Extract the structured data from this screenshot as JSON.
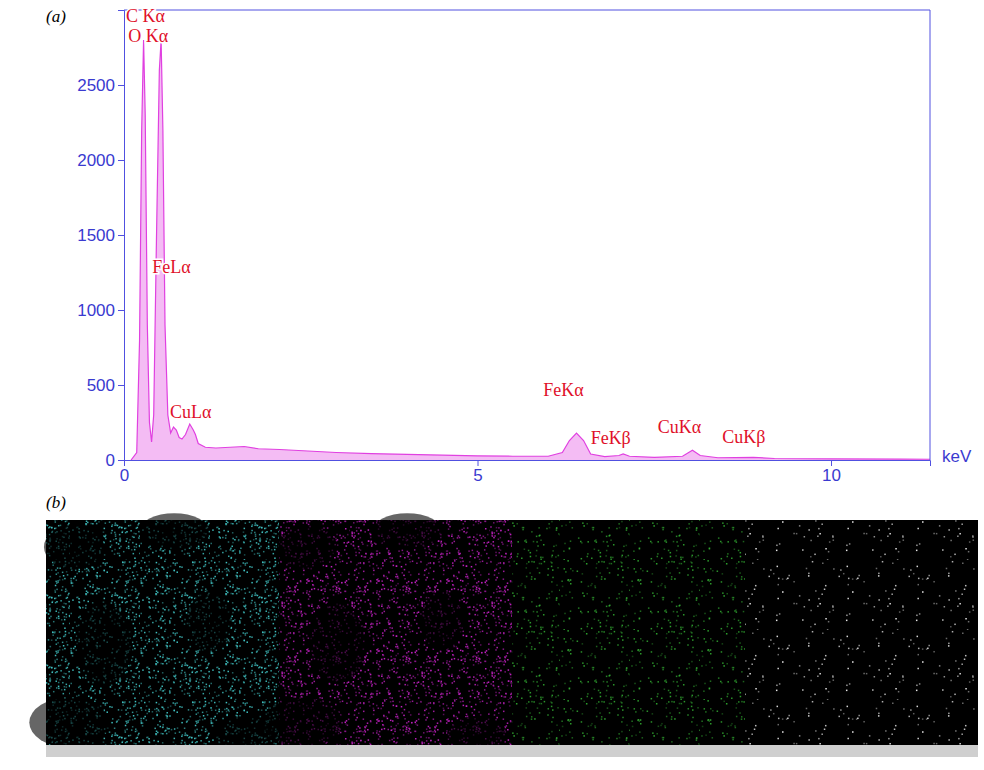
{
  "chart_data": {
    "type": "area",
    "panel": "(a)",
    "x_label": "keV",
    "x": [
      0.1,
      0.18,
      0.22,
      0.25,
      0.277,
      0.3,
      0.33,
      0.36,
      0.39,
      0.42,
      0.46,
      0.5,
      0.525,
      0.55,
      0.58,
      0.62,
      0.66,
      0.7,
      0.74,
      0.78,
      0.82,
      0.87,
      0.93,
      0.98,
      1.01,
      1.05,
      1.15,
      1.3,
      1.5,
      1.7,
      1.9,
      2.2,
      2.6,
      3.0,
      3.5,
      4.0,
      4.5,
      5.0,
      5.5,
      6.0,
      6.2,
      6.3,
      6.4,
      6.5,
      6.6,
      6.8,
      7.0,
      7.06,
      7.15,
      7.5,
      7.9,
      8.04,
      8.15,
      8.4,
      8.9,
      9.2,
      10.0,
      11.0,
      11.4
    ],
    "values": [
      0,
      50,
      800,
      2200,
      2800,
      2300,
      900,
      250,
      120,
      300,
      1500,
      2600,
      2800,
      2200,
      900,
      300,
      180,
      220,
      200,
      150,
      140,
      170,
      240,
      200,
      170,
      110,
      85,
      80,
      85,
      90,
      75,
      70,
      60,
      50,
      42,
      38,
      32,
      28,
      25,
      25,
      50,
      130,
      180,
      130,
      40,
      22,
      30,
      40,
      25,
      18,
      25,
      65,
      30,
      15,
      18,
      10,
      8,
      6,
      5
    ],
    "color": "#e040e0",
    "xlim": [
      0,
      11.4
    ],
    "xticks": [
      0,
      5,
      10
    ],
    "ylim": [
      0,
      3000
    ],
    "yticks": [
      0,
      500,
      1000,
      1500,
      2000,
      2500
    ],
    "grid": false,
    "annotations": [
      {
        "text": "C Kα",
        "x": 0.03,
        "y": 2920
      },
      {
        "text": "O Kα",
        "x": 0.06,
        "y": 2790
      },
      {
        "text": "FeLα",
        "x": 0.4,
        "y": 1250
      },
      {
        "text": "CuLα",
        "x": 0.65,
        "y": 280
      },
      {
        "text": "FeKα",
        "x": 5.93,
        "y": 425
      },
      {
        "text": "FeKβ",
        "x": 6.6,
        "y": 105
      },
      {
        "text": "CuKα",
        "x": 7.55,
        "y": 180
      },
      {
        "text": "CuKβ",
        "x": 8.46,
        "y": 113
      }
    ]
  },
  "maps": {
    "panel": "(b)",
    "colors": [
      "#3fc4c4",
      "#c21fc2",
      "#2fa82f",
      "#e8e8e8"
    ]
  }
}
